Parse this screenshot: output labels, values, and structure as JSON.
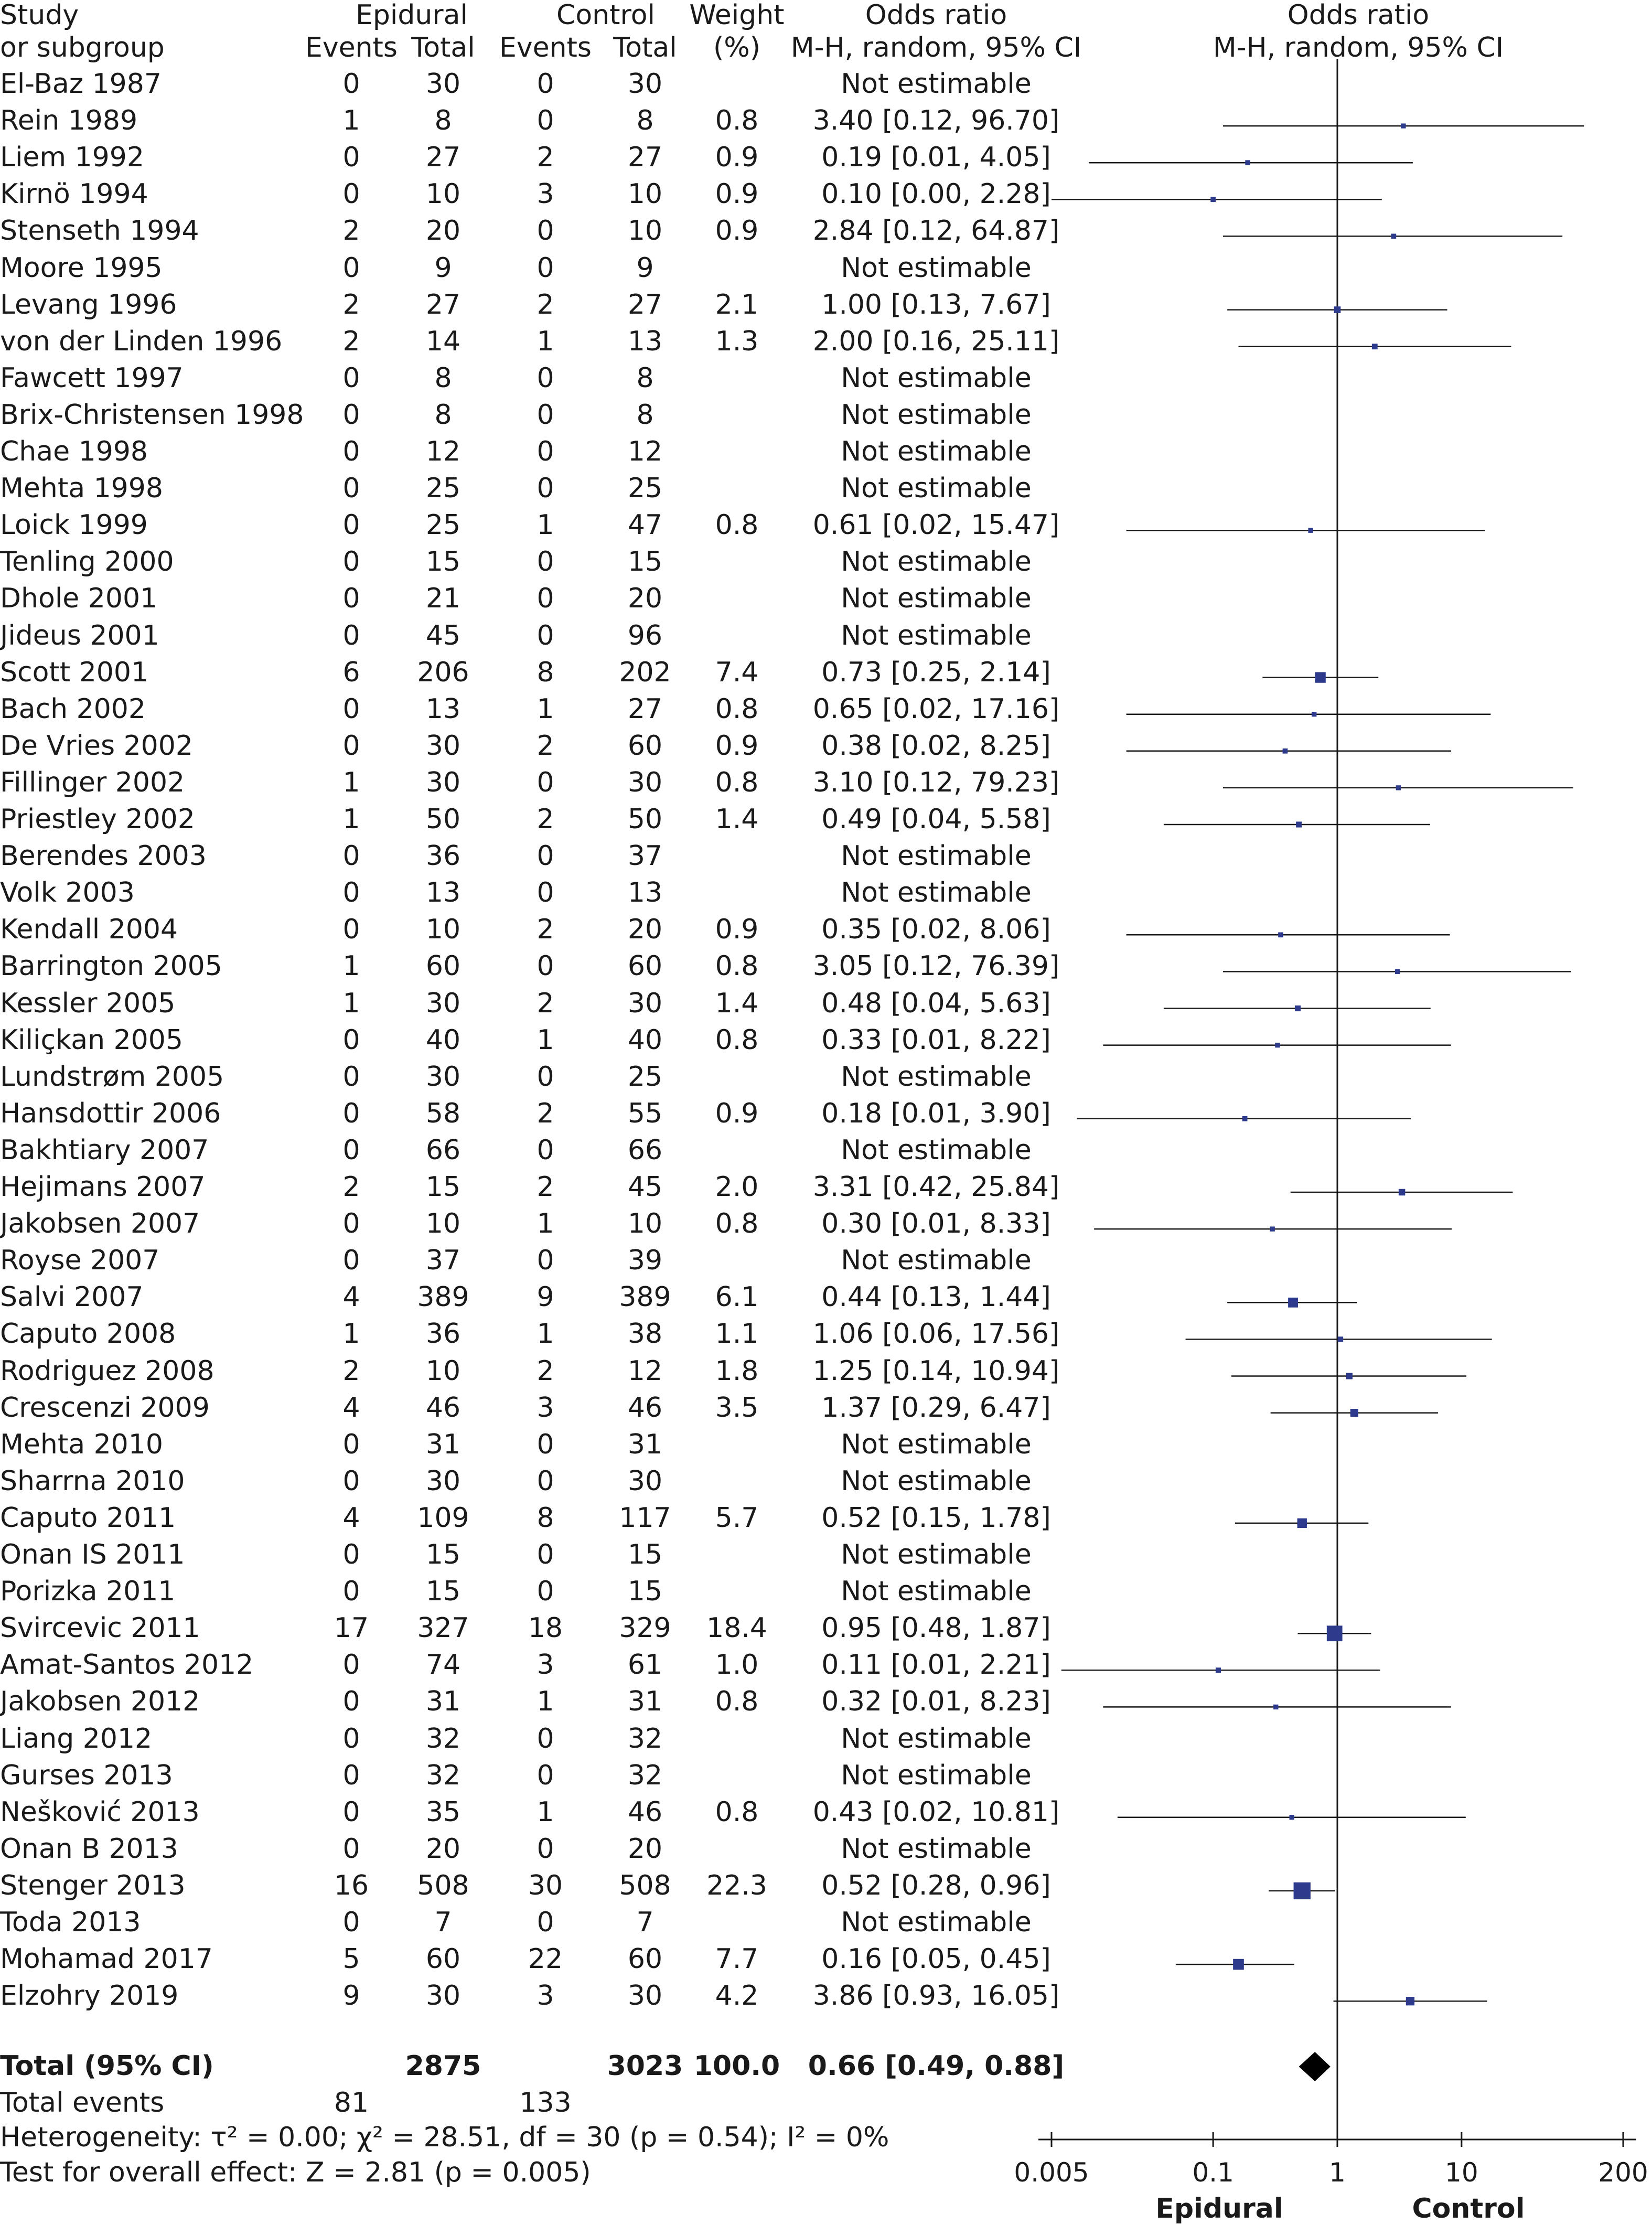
{
  "header": {
    "study": [
      "Study",
      "or subgroup"
    ],
    "group1": "Epidural",
    "group2": "Control",
    "events": "Events",
    "total": "Total",
    "weight": [
      "Weight",
      "(%)"
    ],
    "or_text": [
      "Odds ratio",
      "M-H, random, 95% CI"
    ],
    "or_plot": [
      "Odds ratio",
      "M-H, random, 95% CI"
    ]
  },
  "chart_data": {
    "type": "forest",
    "effect_measure": "Odds ratio (M-H, random, 95% CI)",
    "x_scale": "log",
    "xlim": [
      0.005,
      200
    ],
    "x_ticks": [
      0.005,
      0.1,
      1,
      10,
      200
    ],
    "x_tick_labels": [
      "0.005",
      "0.1",
      "1",
      "10",
      "200"
    ],
    "favours_left": "Epidural",
    "favours_right": "Control",
    "studies": [
      {
        "name": "El-Baz 1987",
        "e1": "0",
        "t1": "30",
        "e2": "0",
        "t2": "30",
        "weight": "",
        "ci_text": "Not estimable",
        "or": null,
        "lo": null,
        "hi": null
      },
      {
        "name": "Rein 1989",
        "e1": "1",
        "t1": "8",
        "e2": "0",
        "t2": "8",
        "weight": "0.8",
        "ci_text": "3.40 [0.12, 96.70]",
        "or": 3.4,
        "lo": 0.12,
        "hi": 96.7
      },
      {
        "name": "Liem 1992",
        "e1": "0",
        "t1": "27",
        "e2": "2",
        "t2": "27",
        "weight": "0.9",
        "ci_text": "0.19 [0.01, 4.05]",
        "or": 0.19,
        "lo": 0.01,
        "hi": 4.05
      },
      {
        "name": "Kirnö 1994",
        "e1": "0",
        "t1": "10",
        "e2": "3",
        "t2": "10",
        "weight": "0.9",
        "ci_text": "0.10 [0.00, 2.28]",
        "or": 0.1,
        "lo": 0.004,
        "hi": 2.28
      },
      {
        "name": "Stenseth 1994",
        "e1": "2",
        "t1": "20",
        "e2": "0",
        "t2": "10",
        "weight": "0.9",
        "ci_text": "2.84 [0.12, 64.87]",
        "or": 2.84,
        "lo": 0.12,
        "hi": 64.87
      },
      {
        "name": "Moore 1995",
        "e1": "0",
        "t1": "9",
        "e2": "0",
        "t2": "9",
        "weight": "",
        "ci_text": "Not estimable",
        "or": null,
        "lo": null,
        "hi": null
      },
      {
        "name": "Levang 1996",
        "e1": "2",
        "t1": "27",
        "e2": "2",
        "t2": "27",
        "weight": "2.1",
        "ci_text": "1.00 [0.13, 7.67]",
        "or": 1.0,
        "lo": 0.13,
        "hi": 7.67
      },
      {
        "name": "von der Linden 1996",
        "e1": "2",
        "t1": "14",
        "e2": "1",
        "t2": "13",
        "weight": "1.3",
        "ci_text": "2.00 [0.16, 25.11]",
        "or": 2.0,
        "lo": 0.16,
        "hi": 25.11
      },
      {
        "name": "Fawcett 1997",
        "e1": "0",
        "t1": "8",
        "e2": "0",
        "t2": "8",
        "weight": "",
        "ci_text": "Not estimable",
        "or": null,
        "lo": null,
        "hi": null
      },
      {
        "name": "Brix-Christensen 1998",
        "e1": "0",
        "t1": "8",
        "e2": "0",
        "t2": "8",
        "weight": "",
        "ci_text": "Not estimable",
        "or": null,
        "lo": null,
        "hi": null
      },
      {
        "name": "Chae 1998",
        "e1": "0",
        "t1": "12",
        "e2": "0",
        "t2": "12",
        "weight": "",
        "ci_text": "Not estimable",
        "or": null,
        "lo": null,
        "hi": null
      },
      {
        "name": "Mehta 1998",
        "e1": "0",
        "t1": "25",
        "e2": "0",
        "t2": "25",
        "weight": "",
        "ci_text": "Not estimable",
        "or": null,
        "lo": null,
        "hi": null
      },
      {
        "name": "Loick 1999",
        "e1": "0",
        "t1": "25",
        "e2": "1",
        "t2": "47",
        "weight": "0.8",
        "ci_text": "0.61 [0.02, 15.47]",
        "or": 0.61,
        "lo": 0.02,
        "hi": 15.47
      },
      {
        "name": "Tenling 2000",
        "e1": "0",
        "t1": "15",
        "e2": "0",
        "t2": "15",
        "weight": "",
        "ci_text": "Not estimable",
        "or": null,
        "lo": null,
        "hi": null
      },
      {
        "name": "Dhole 2001",
        "e1": "0",
        "t1": "21",
        "e2": "0",
        "t2": "20",
        "weight": "",
        "ci_text": "Not estimable",
        "or": null,
        "lo": null,
        "hi": null
      },
      {
        "name": "Jideus 2001",
        "e1": "0",
        "t1": "45",
        "e2": "0",
        "t2": "96",
        "weight": "",
        "ci_text": "Not estimable",
        "or": null,
        "lo": null,
        "hi": null
      },
      {
        "name": "Scott 2001",
        "e1": "6",
        "t1": "206",
        "e2": "8",
        "t2": "202",
        "weight": "7.4",
        "ci_text": "0.73 [0.25, 2.14]",
        "or": 0.73,
        "lo": 0.25,
        "hi": 2.14
      },
      {
        "name": "Bach 2002",
        "e1": "0",
        "t1": "13",
        "e2": "1",
        "t2": "27",
        "weight": "0.8",
        "ci_text": "0.65 [0.02, 17.16]",
        "or": 0.65,
        "lo": 0.02,
        "hi": 17.16
      },
      {
        "name": "De Vries 2002",
        "e1": "0",
        "t1": "30",
        "e2": "2",
        "t2": "60",
        "weight": "0.9",
        "ci_text": "0.38 [0.02, 8.25]",
        "or": 0.38,
        "lo": 0.02,
        "hi": 8.25
      },
      {
        "name": "Fillinger 2002",
        "e1": "1",
        "t1": "30",
        "e2": "0",
        "t2": "30",
        "weight": "0.8",
        "ci_text": "3.10 [0.12, 79.23]",
        "or": 3.1,
        "lo": 0.12,
        "hi": 79.23
      },
      {
        "name": "Priestley 2002",
        "e1": "1",
        "t1": "50",
        "e2": "2",
        "t2": "50",
        "weight": "1.4",
        "ci_text": "0.49 [0.04, 5.58]",
        "or": 0.49,
        "lo": 0.04,
        "hi": 5.58
      },
      {
        "name": "Berendes 2003",
        "e1": "0",
        "t1": "36",
        "e2": "0",
        "t2": "37",
        "weight": "",
        "ci_text": "Not estimable",
        "or": null,
        "lo": null,
        "hi": null
      },
      {
        "name": "Volk 2003",
        "e1": "0",
        "t1": "13",
        "e2": "0",
        "t2": "13",
        "weight": "",
        "ci_text": "Not estimable",
        "or": null,
        "lo": null,
        "hi": null
      },
      {
        "name": "Kendall 2004",
        "e1": "0",
        "t1": "10",
        "e2": "2",
        "t2": "20",
        "weight": "0.9",
        "ci_text": "0.35 [0.02, 8.06]",
        "or": 0.35,
        "lo": 0.02,
        "hi": 8.06
      },
      {
        "name": "Barrington 2005",
        "e1": "1",
        "t1": "60",
        "e2": "0",
        "t2": "60",
        "weight": "0.8",
        "ci_text": "3.05 [0.12, 76.39]",
        "or": 3.05,
        "lo": 0.12,
        "hi": 76.39
      },
      {
        "name": "Kessler 2005",
        "e1": "1",
        "t1": "30",
        "e2": "2",
        "t2": "30",
        "weight": "1.4",
        "ci_text": "0.48 [0.04, 5.63]",
        "or": 0.48,
        "lo": 0.04,
        "hi": 5.63
      },
      {
        "name": "Kiliçkan 2005",
        "e1": "0",
        "t1": "40",
        "e2": "1",
        "t2": "40",
        "weight": "0.8",
        "ci_text": "0.33 [0.01, 8.22]",
        "or": 0.33,
        "lo": 0.013,
        "hi": 8.22
      },
      {
        "name": "Lundstrøm 2005",
        "e1": "0",
        "t1": "30",
        "e2": "0",
        "t2": "25",
        "weight": "",
        "ci_text": "Not estimable",
        "or": null,
        "lo": null,
        "hi": null
      },
      {
        "name": "Hansdottir 2006",
        "e1": "0",
        "t1": "58",
        "e2": "2",
        "t2": "55",
        "weight": "0.9",
        "ci_text": "0.18 [0.01, 3.90]",
        "or": 0.18,
        "lo": 0.008,
        "hi": 3.9
      },
      {
        "name": "Bakhtiary 2007",
        "e1": "0",
        "t1": "66",
        "e2": "0",
        "t2": "66",
        "weight": "",
        "ci_text": "Not estimable",
        "or": null,
        "lo": null,
        "hi": null
      },
      {
        "name": "Hejimans 2007",
        "e1": "2",
        "t1": "15",
        "e2": "2",
        "t2": "45",
        "weight": "2.0",
        "ci_text": "3.31 [0.42, 25.84]",
        "or": 3.31,
        "lo": 0.42,
        "hi": 25.84
      },
      {
        "name": "Jakobsen 2007",
        "e1": "0",
        "t1": "10",
        "e2": "1",
        "t2": "10",
        "weight": "0.8",
        "ci_text": "0.30 [0.01, 8.33]",
        "or": 0.3,
        "lo": 0.011,
        "hi": 8.33
      },
      {
        "name": "Royse 2007",
        "e1": "0",
        "t1": "37",
        "e2": "0",
        "t2": "39",
        "weight": "",
        "ci_text": "Not estimable",
        "or": null,
        "lo": null,
        "hi": null
      },
      {
        "name": "Salvi 2007",
        "e1": "4",
        "t1": "389",
        "e2": "9",
        "t2": "389",
        "weight": "6.1",
        "ci_text": "0.44 [0.13, 1.44]",
        "or": 0.44,
        "lo": 0.13,
        "hi": 1.44
      },
      {
        "name": "Caputo 2008",
        "e1": "1",
        "t1": "36",
        "e2": "1",
        "t2": "38",
        "weight": "1.1",
        "ci_text": "1.06 [0.06, 17.56]",
        "or": 1.06,
        "lo": 0.06,
        "hi": 17.56
      },
      {
        "name": "Rodriguez 2008",
        "e1": "2",
        "t1": "10",
        "e2": "2",
        "t2": "12",
        "weight": "1.8",
        "ci_text": "1.25 [0.14, 10.94]",
        "or": 1.25,
        "lo": 0.14,
        "hi": 10.94
      },
      {
        "name": "Crescenzi 2009",
        "e1": "4",
        "t1": "46",
        "e2": "3",
        "t2": "46",
        "weight": "3.5",
        "ci_text": "1.37 [0.29, 6.47]",
        "or": 1.37,
        "lo": 0.29,
        "hi": 6.47
      },
      {
        "name": "Mehta 2010",
        "e1": "0",
        "t1": "31",
        "e2": "0",
        "t2": "31",
        "weight": "",
        "ci_text": "Not estimable",
        "or": null,
        "lo": null,
        "hi": null
      },
      {
        "name": "Sharrna 2010",
        "e1": "0",
        "t1": "30",
        "e2": "0",
        "t2": "30",
        "weight": "",
        "ci_text": "Not estimable",
        "or": null,
        "lo": null,
        "hi": null
      },
      {
        "name": "Caputo 2011",
        "e1": "4",
        "t1": "109",
        "e2": "8",
        "t2": "117",
        "weight": "5.7",
        "ci_text": "0.52 [0.15, 1.78]",
        "or": 0.52,
        "lo": 0.15,
        "hi": 1.78
      },
      {
        "name": "Onan IS 2011",
        "e1": "0",
        "t1": "15",
        "e2": "0",
        "t2": "15",
        "weight": "",
        "ci_text": "Not estimable",
        "or": null,
        "lo": null,
        "hi": null
      },
      {
        "name": "Porizka 2011",
        "e1": "0",
        "t1": "15",
        "e2": "0",
        "t2": "15",
        "weight": "",
        "ci_text": "Not estimable",
        "or": null,
        "lo": null,
        "hi": null
      },
      {
        "name": "Svircevic 2011",
        "e1": "17",
        "t1": "327",
        "e2": "18",
        "t2": "329",
        "weight": "18.4",
        "ci_text": "0.95 [0.48, 1.87]",
        "or": 0.95,
        "lo": 0.48,
        "hi": 1.87
      },
      {
        "name": "Amat-Santos 2012",
        "e1": "0",
        "t1": "74",
        "e2": "3",
        "t2": "61",
        "weight": "1.0",
        "ci_text": "0.11 [0.01, 2.21]",
        "or": 0.11,
        "lo": 0.006,
        "hi": 2.21
      },
      {
        "name": "Jakobsen 2012",
        "e1": "0",
        "t1": "31",
        "e2": "1",
        "t2": "31",
        "weight": "0.8",
        "ci_text": "0.32 [0.01, 8.23]",
        "or": 0.32,
        "lo": 0.013,
        "hi": 8.23
      },
      {
        "name": "Liang 2012",
        "e1": "0",
        "t1": "32",
        "e2": "0",
        "t2": "32",
        "weight": "",
        "ci_text": "Not estimable",
        "or": null,
        "lo": null,
        "hi": null
      },
      {
        "name": "Gurses 2013",
        "e1": "0",
        "t1": "32",
        "e2": "0",
        "t2": "32",
        "weight": "",
        "ci_text": "Not estimable",
        "or": null,
        "lo": null,
        "hi": null
      },
      {
        "name": "Nešković 2013",
        "e1": "0",
        "t1": "35",
        "e2": "1",
        "t2": "46",
        "weight": "0.8",
        "ci_text": "0.43 [0.02, 10.81]",
        "or": 0.43,
        "lo": 0.017,
        "hi": 10.81
      },
      {
        "name": "Onan B 2013",
        "e1": "0",
        "t1": "20",
        "e2": "0",
        "t2": "20",
        "weight": "",
        "ci_text": "Not estimable",
        "or": null,
        "lo": null,
        "hi": null
      },
      {
        "name": "Stenger 2013",
        "e1": "16",
        "t1": "508",
        "e2": "30",
        "t2": "508",
        "weight": "22.3",
        "ci_text": "0.52 [0.28, 0.96]",
        "or": 0.52,
        "lo": 0.28,
        "hi": 0.96
      },
      {
        "name": "Toda 2013",
        "e1": "0",
        "t1": "7",
        "e2": "0",
        "t2": "7",
        "weight": "",
        "ci_text": "Not estimable",
        "or": null,
        "lo": null,
        "hi": null
      },
      {
        "name": "Mohamad 2017",
        "e1": "5",
        "t1": "60",
        "e2": "22",
        "t2": "60",
        "weight": "7.7",
        "ci_text": "0.16 [0.05, 0.45]",
        "or": 0.16,
        "lo": 0.05,
        "hi": 0.45
      },
      {
        "name": "Elzohry 2019",
        "e1": "9",
        "t1": "30",
        "e2": "3",
        "t2": "30",
        "weight": "4.2",
        "ci_text": "3.86 [0.93, 16.05]",
        "or": 3.86,
        "lo": 0.93,
        "hi": 16.05
      }
    ],
    "total": {
      "label": "Total (95% CI)",
      "t1": "2875",
      "t2": "3023",
      "weight": "100.0",
      "ci_text": "0.66 [0.49, 0.88]",
      "or": 0.66,
      "lo": 0.49,
      "hi": 0.88
    },
    "total_events": {
      "label": "Total events",
      "e1": "81",
      "e2": "133"
    },
    "heterogeneity": "Heterogeneity: τ² = 0.00; χ² = 28.51, df = 30 (p = 0.54); I² = 0%",
    "overall_effect": "Test for overall effect: Z = 2.81 (p = 0.005)"
  },
  "colors": {
    "marker": "#2e3a8c",
    "line": "#1a1a1a",
    "text": "#1a1a1a"
  }
}
